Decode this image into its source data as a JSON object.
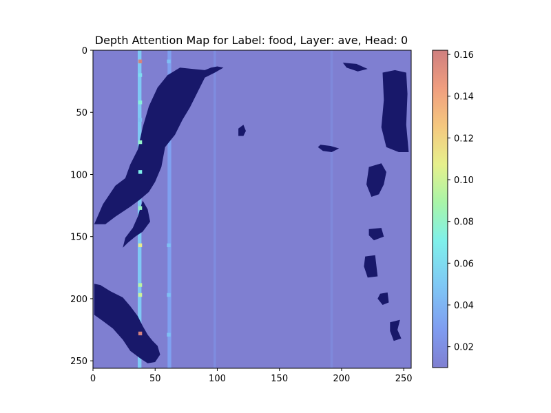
{
  "chart_data": {
    "type": "heatmap",
    "title": "Depth Attention Map for Label: food, Layer: ave, Head: 0",
    "xlabel": "",
    "ylabel": "",
    "xlim": [
      0,
      256
    ],
    "ylim": [
      256,
      0
    ],
    "x_ticks": [
      0,
      50,
      100,
      150,
      200,
      250
    ],
    "y_ticks": [
      0,
      50,
      100,
      150,
      200,
      250
    ],
    "grid": false,
    "colormap": "jet",
    "background_value": 0.01,
    "colorbar": {
      "min": 0.01,
      "max": 0.162,
      "ticks": [
        "0.02",
        "0.04",
        "0.06",
        "0.08",
        "0.10",
        "0.12",
        "0.14",
        "0.16"
      ]
    },
    "low_depth_regions": [
      {
        "name": "left-upper-wedge",
        "points": [
          [
            1,
            140
          ],
          [
            8,
            124
          ],
          [
            18,
            109
          ],
          [
            26,
            103
          ],
          [
            30,
            92
          ],
          [
            36,
            80
          ],
          [
            40,
            62
          ],
          [
            45,
            45
          ],
          [
            52,
            30
          ],
          [
            60,
            20
          ],
          [
            70,
            14
          ],
          [
            80,
            15
          ],
          [
            90,
            16
          ],
          [
            95,
            14
          ],
          [
            100,
            13
          ],
          [
            105,
            14
          ],
          [
            98,
            18
          ],
          [
            90,
            22
          ],
          [
            84,
            34
          ],
          [
            78,
            46
          ],
          [
            72,
            56
          ],
          [
            66,
            68
          ],
          [
            58,
            78
          ],
          [
            55,
            94
          ],
          [
            50,
            106
          ],
          [
            45,
            114
          ],
          [
            38,
            120
          ],
          [
            30,
            126
          ],
          [
            18,
            134
          ],
          [
            10,
            140
          ]
        ]
      },
      {
        "name": "left-lower-mass",
        "points": [
          [
            1,
            188
          ],
          [
            6,
            189
          ],
          [
            14,
            194
          ],
          [
            24,
            199
          ],
          [
            30,
            206
          ],
          [
            36,
            214
          ],
          [
            40,
            222
          ],
          [
            44,
            229
          ],
          [
            48,
            234
          ],
          [
            52,
            238
          ],
          [
            54,
            245
          ],
          [
            50,
            251
          ],
          [
            44,
            252
          ],
          [
            38,
            248
          ],
          [
            30,
            242
          ],
          [
            24,
            233
          ],
          [
            16,
            224
          ],
          [
            8,
            218
          ],
          [
            1,
            213
          ]
        ]
      },
      {
        "name": "inner-spike",
        "points": [
          [
            40,
            121
          ],
          [
            44,
            128
          ],
          [
            46,
            138
          ],
          [
            40,
            146
          ],
          [
            34,
            150
          ],
          [
            28,
            155
          ],
          [
            24,
            159
          ],
          [
            26,
            151
          ],
          [
            32,
            143
          ],
          [
            36,
            134
          ]
        ]
      },
      {
        "name": "right-strip",
        "points": [
          [
            233,
            18
          ],
          [
            243,
            16
          ],
          [
            252,
            18
          ],
          [
            253,
            35
          ],
          [
            252,
            60
          ],
          [
            254,
            82
          ],
          [
            246,
            82
          ],
          [
            236,
            78
          ],
          [
            232,
            62
          ],
          [
            234,
            40
          ]
        ]
      },
      {
        "name": "right-middle",
        "points": [
          [
            222,
            94
          ],
          [
            232,
            91
          ],
          [
            236,
            98
          ],
          [
            234,
            108
          ],
          [
            230,
            116
          ],
          [
            224,
            118
          ],
          [
            220,
            108
          ]
        ]
      },
      {
        "name": "top-right-island",
        "points": [
          [
            201,
            10
          ],
          [
            212,
            11
          ],
          [
            221,
            15
          ],
          [
            213,
            17
          ],
          [
            204,
            14
          ]
        ]
      },
      {
        "name": "small-blob-a",
        "points": [
          [
            117,
            63
          ],
          [
            121,
            60
          ],
          [
            123,
            65
          ],
          [
            121,
            69
          ],
          [
            117,
            69
          ]
        ]
      },
      {
        "name": "small-blob-b",
        "points": [
          [
            183,
            76
          ],
          [
            191,
            77
          ],
          [
            198,
            79
          ],
          [
            192,
            82
          ],
          [
            185,
            81
          ],
          [
            181,
            78
          ]
        ]
      },
      {
        "name": "small-blob-c",
        "points": [
          [
            222,
            144
          ],
          [
            232,
            143
          ],
          [
            234,
            150
          ],
          [
            226,
            153
          ],
          [
            222,
            149
          ]
        ]
      },
      {
        "name": "small-blob-d",
        "points": [
          [
            219,
            166
          ],
          [
            227,
            165
          ],
          [
            229,
            182
          ],
          [
            221,
            183
          ],
          [
            218,
            174
          ]
        ]
      },
      {
        "name": "small-blob-e",
        "points": [
          [
            231,
            196
          ],
          [
            237,
            195
          ],
          [
            238,
            203
          ],
          [
            233,
            205
          ],
          [
            229,
            200
          ]
        ]
      },
      {
        "name": "small-blob-f",
        "points": [
          [
            239,
            219
          ],
          [
            247,
            217
          ],
          [
            245,
            225
          ],
          [
            248,
            232
          ],
          [
            242,
            234
          ],
          [
            239,
            226
          ]
        ]
      }
    ],
    "attention_columns": [
      {
        "x": 37.5,
        "width": 3,
        "base": 0.05
      },
      {
        "x": 61.5,
        "width": 3,
        "base": 0.03
      },
      {
        "x": 98,
        "width": 2,
        "base": 0.018
      },
      {
        "x": 192,
        "width": 2,
        "base": 0.016
      }
    ],
    "attention_points": [
      {
        "x": 38,
        "y": 9,
        "value": 0.16
      },
      {
        "x": 38,
        "y": 20,
        "value": 0.06
      },
      {
        "x": 38,
        "y": 42,
        "value": 0.075
      },
      {
        "x": 38,
        "y": 56,
        "value": 0.045
      },
      {
        "x": 38,
        "y": 74,
        "value": 0.08
      },
      {
        "x": 38,
        "y": 98,
        "value": 0.07
      },
      {
        "x": 38,
        "y": 127,
        "value": 0.082
      },
      {
        "x": 38,
        "y": 157,
        "value": 0.11
      },
      {
        "x": 38,
        "y": 189,
        "value": 0.095
      },
      {
        "x": 38,
        "y": 197,
        "value": 0.1
      },
      {
        "x": 38,
        "y": 228,
        "value": 0.16
      },
      {
        "x": 61,
        "y": 9,
        "value": 0.045
      },
      {
        "x": 61,
        "y": 157,
        "value": 0.045
      },
      {
        "x": 61,
        "y": 197,
        "value": 0.045
      },
      {
        "x": 61,
        "y": 229,
        "value": 0.045
      }
    ]
  }
}
